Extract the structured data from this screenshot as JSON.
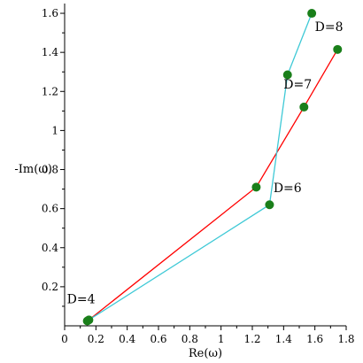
{
  "chart_data": {
    "type": "line",
    "title": "",
    "xlabel": "Re(ω)",
    "ylabel": "-Im(ω)",
    "xlim": [
      0,
      1.8
    ],
    "ylim": [
      0,
      1.65
    ],
    "x_ticks": [
      "0",
      "0.2",
      "0.4",
      "0.6",
      "0.8",
      "1",
      "1.2",
      "1.4",
      "1.6",
      "1.8"
    ],
    "y_ticks": [
      "0.2",
      "0.4",
      "0.6",
      "0.8",
      "1",
      "1.2",
      "1.4",
      "1.6"
    ],
    "grid": false,
    "legend": "none",
    "series": [
      {
        "color": "#ff0000",
        "marker_color": "#1a7f1a",
        "points": [
          {
            "x": 0.155,
            "y": 0.03
          },
          {
            "x": 1.225,
            "y": 0.71
          },
          {
            "x": 1.53,
            "y": 1.12
          },
          {
            "x": 1.745,
            "y": 1.415
          }
        ]
      },
      {
        "color": "#3ec9d6",
        "marker_color": "#1a7f1a",
        "points": [
          {
            "x": 0.145,
            "y": 0.025
          },
          {
            "x": 1.31,
            "y": 0.62
          },
          {
            "x": 1.425,
            "y": 1.285
          },
          {
            "x": 1.58,
            "y": 1.6
          }
        ]
      }
    ],
    "annotations": [
      {
        "text": "D=4",
        "x": 0.105,
        "y": 0.115
      },
      {
        "text": "D=6",
        "x": 1.425,
        "y": 0.685
      },
      {
        "text": "D=7",
        "x": 1.49,
        "y": 1.215
      },
      {
        "text": "D=8",
        "x": 1.69,
        "y": 1.51
      }
    ]
  }
}
